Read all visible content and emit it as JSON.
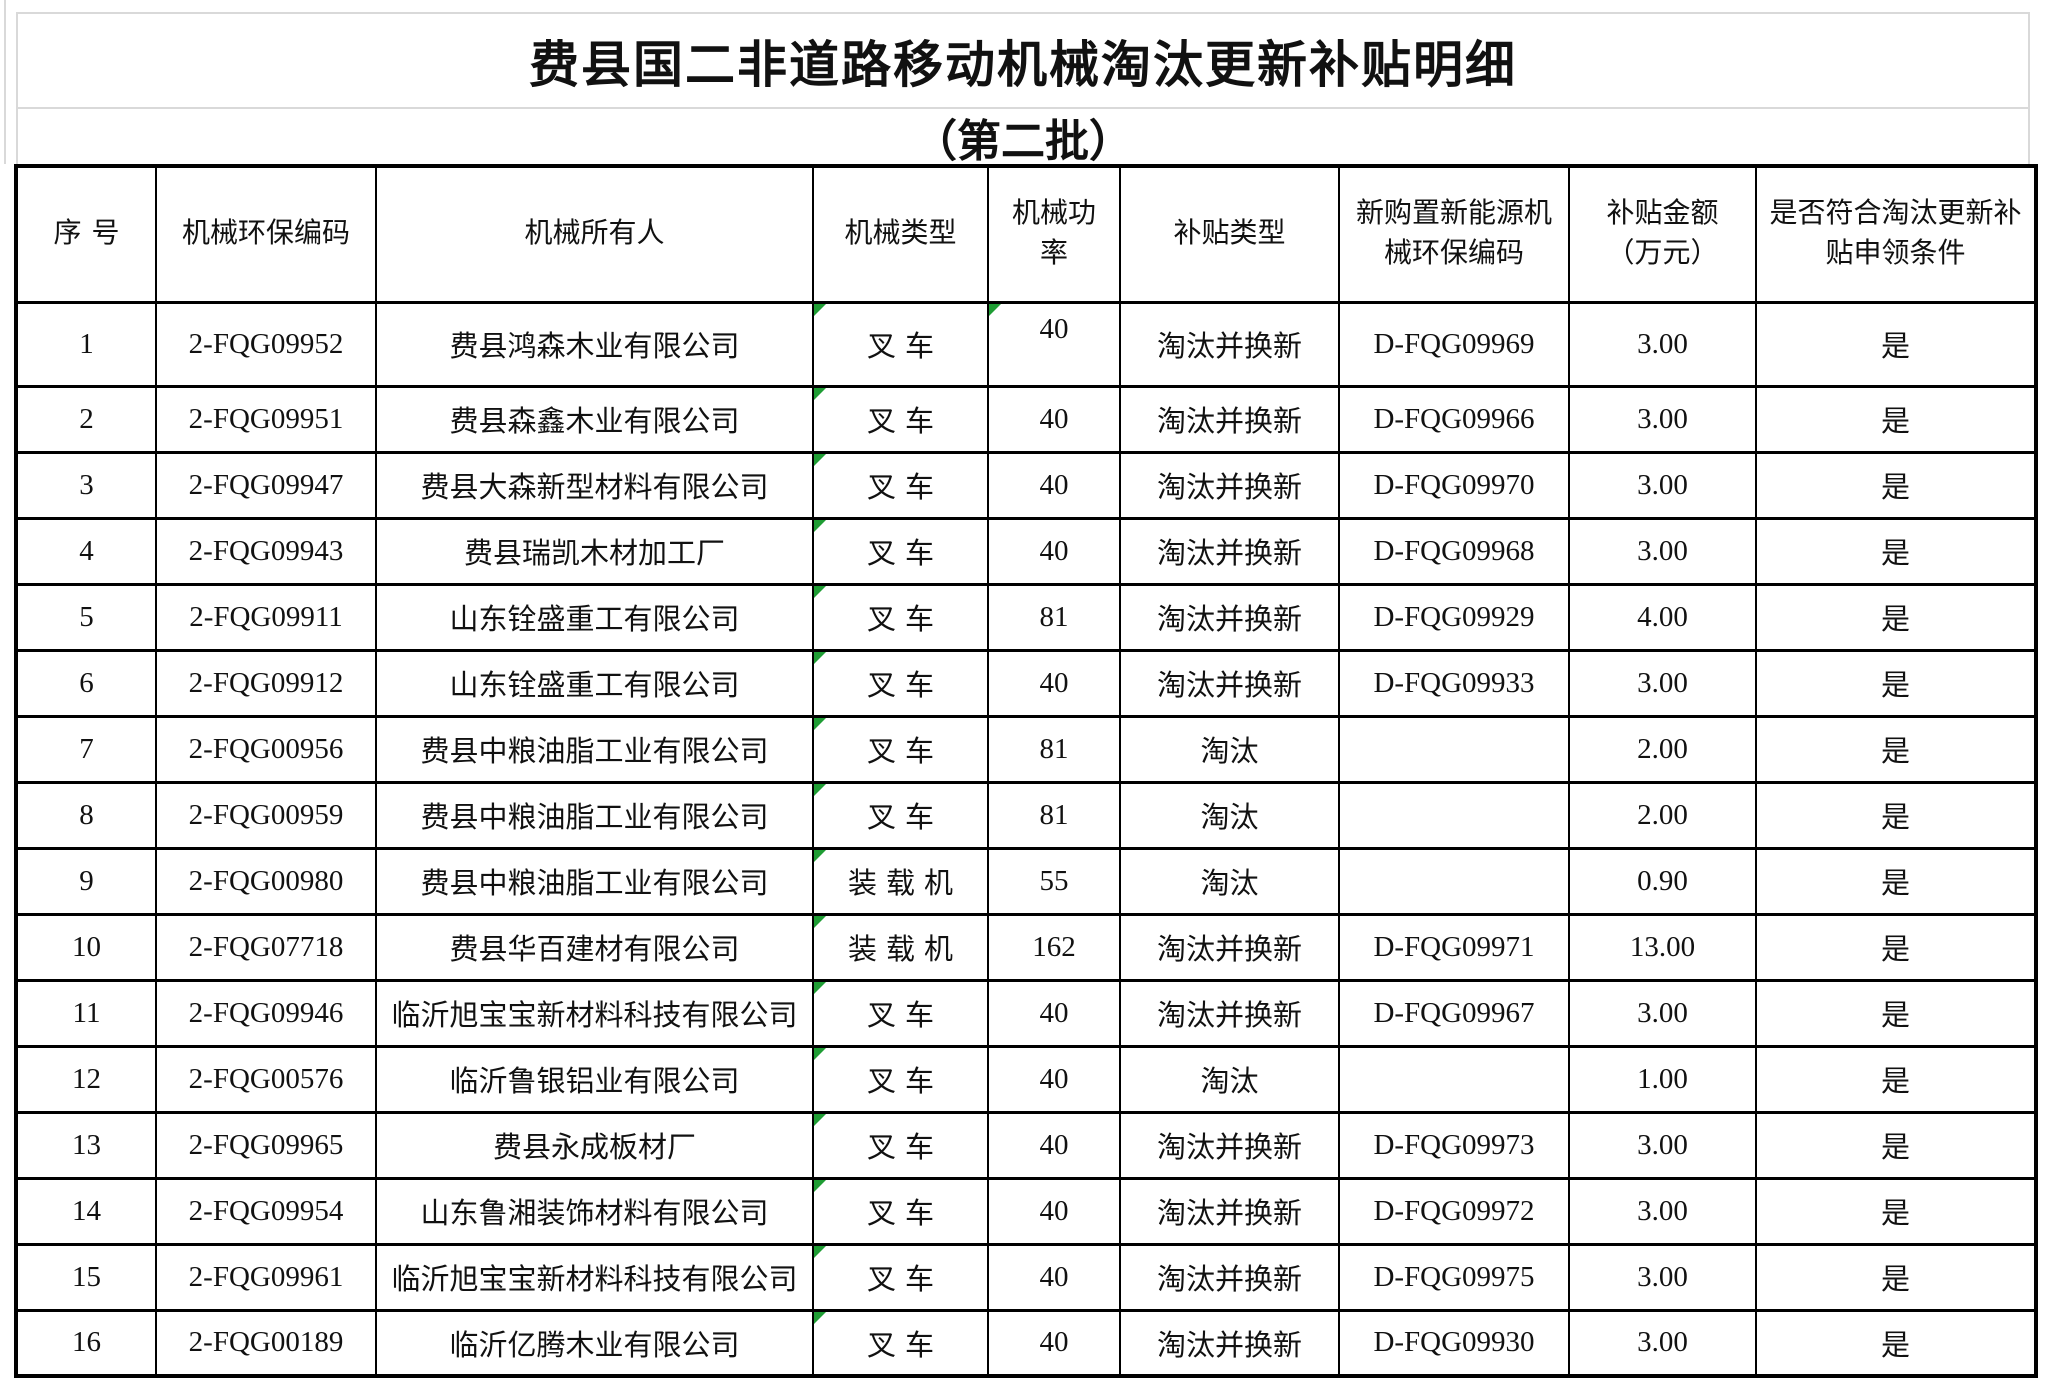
{
  "page_title": "费县国二非道路移动机械淘汰更新补贴明细",
  "page_subtitle": "（第二批）",
  "colors": {
    "flag_green": "#1f9d34",
    "table_border": "#000000",
    "gridline_gray": "#d9d9d9",
    "text": "#111111"
  },
  "table": {
    "columns": [
      "序号",
      "机械环保编码",
      "机械所有人",
      "机械类型",
      "机械功率",
      "补贴类型",
      "新购置新能源机\n械环保编码",
      "补贴金额\n（万元）",
      "是否符合淘汰更新补\n贴申领条件"
    ],
    "rows": [
      {
        "cells": [
          "1",
          "2-FQG09952",
          "费县鸿森木业有限公司",
          "叉车",
          "40",
          "淘汰并换新",
          "D-FQG09969",
          "3.00",
          "是"
        ],
        "flags": [
          3,
          4
        ],
        "power_top": true
      },
      {
        "cells": [
          "2",
          "2-FQG09951",
          "费县森鑫木业有限公司",
          "叉车",
          "40",
          "淘汰并换新",
          "D-FQG09966",
          "3.00",
          "是"
        ],
        "flags": [
          3
        ]
      },
      {
        "cells": [
          "3",
          "2-FQG09947",
          "费县大森新型材料有限公司",
          "叉车",
          "40",
          "淘汰并换新",
          "D-FQG09970",
          "3.00",
          "是"
        ],
        "flags": [
          3
        ]
      },
      {
        "cells": [
          "4",
          "2-FQG09943",
          "费县瑞凯木材加工厂",
          "叉车",
          "40",
          "淘汰并换新",
          "D-FQG09968",
          "3.00",
          "是"
        ],
        "flags": [
          3
        ]
      },
      {
        "cells": [
          "5",
          "2-FQG09911",
          "山东铨盛重工有限公司",
          "叉车",
          "81",
          "淘汰并换新",
          "D-FQG09929",
          "4.00",
          "是"
        ],
        "flags": [
          3
        ]
      },
      {
        "cells": [
          "6",
          "2-FQG09912",
          "山东铨盛重工有限公司",
          "叉车",
          "40",
          "淘汰并换新",
          "D-FQG09933",
          "3.00",
          "是"
        ],
        "flags": [
          3
        ]
      },
      {
        "cells": [
          "7",
          "2-FQG00956",
          "费县中粮油脂工业有限公司",
          "叉车",
          "81",
          "淘汰",
          "",
          "2.00",
          "是"
        ],
        "flags": [
          3
        ]
      },
      {
        "cells": [
          "8",
          "2-FQG00959",
          "费县中粮油脂工业有限公司",
          "叉车",
          "81",
          "淘汰",
          "",
          "2.00",
          "是"
        ],
        "flags": [
          3
        ]
      },
      {
        "cells": [
          "9",
          "2-FQG00980",
          "费县中粮油脂工业有限公司",
          "装载机",
          "55",
          "淘汰",
          "",
          "0.90",
          "是"
        ],
        "flags": [
          3
        ]
      },
      {
        "cells": [
          "10",
          "2-FQG07718",
          "费县华百建材有限公司",
          "装载机",
          "162",
          "淘汰并换新",
          "D-FQG09971",
          "13.00",
          "是"
        ],
        "flags": [
          3
        ]
      },
      {
        "cells": [
          "11",
          "2-FQG09946",
          "临沂旭宝宝新材料科技有限公司",
          "叉车",
          "40",
          "淘汰并换新",
          "D-FQG09967",
          "3.00",
          "是"
        ],
        "flags": [
          3
        ]
      },
      {
        "cells": [
          "12",
          "2-FQG00576",
          "临沂鲁银铝业有限公司",
          "叉车",
          "40",
          "淘汰",
          "",
          "1.00",
          "是"
        ],
        "flags": [
          3
        ]
      },
      {
        "cells": [
          "13",
          "2-FQG09965",
          "费县永成板材厂",
          "叉车",
          "40",
          "淘汰并换新",
          "D-FQG09973",
          "3.00",
          "是"
        ],
        "flags": [
          3
        ]
      },
      {
        "cells": [
          "14",
          "2-FQG09954",
          "山东鲁湘装饰材料有限公司",
          "叉车",
          "40",
          "淘汰并换新",
          "D-FQG09972",
          "3.00",
          "是"
        ],
        "flags": [
          3
        ]
      },
      {
        "cells": [
          "15",
          "2-FQG09961",
          "临沂旭宝宝新材料科技有限公司",
          "叉车",
          "40",
          "淘汰并换新",
          "D-FQG09975",
          "3.00",
          "是"
        ],
        "flags": [
          3
        ]
      },
      {
        "cells": [
          "16",
          "2-FQG00189",
          "临沂亿腾木业有限公司",
          "叉车",
          "40",
          "淘汰并换新",
          "D-FQG09930",
          "3.00",
          "是"
        ],
        "flags": [
          3
        ]
      }
    ],
    "column_semantics": [
      "row-number",
      "machine-env-code",
      "machine-owner",
      "machine-type",
      "machine-power",
      "subsidy-type",
      "new-energy-machine-env-code",
      "subsidy-amount-10k-yuan",
      "meets-claim-conditions"
    ]
  }
}
